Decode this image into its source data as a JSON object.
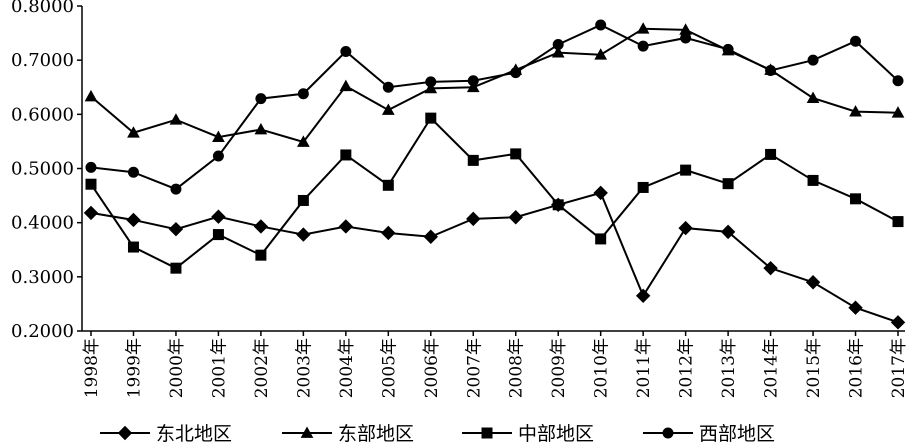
{
  "chart_data": {
    "type": "line",
    "categories": [
      "1998年",
      "1999年",
      "2000年",
      "2001年",
      "2002年",
      "2003年",
      "2004年",
      "2005年",
      "2006年",
      "2007年",
      "2008年",
      "2009年",
      "2010年",
      "2011年",
      "2012年",
      "2013年",
      "2014年",
      "2015年",
      "2016年",
      "2017年"
    ],
    "y_ticks": [
      "0.2000",
      "0.3000",
      "0.4000",
      "0.5000",
      "0.6000",
      "0.7000",
      "0.8000"
    ],
    "ylim": [
      0.2,
      0.8
    ],
    "grid": false,
    "legend_position": "bottom",
    "series": [
      {
        "name": "东北地区",
        "marker": "diamond",
        "values": [
          0.418,
          0.405,
          0.388,
          0.411,
          0.393,
          0.378,
          0.393,
          0.381,
          0.374,
          0.407,
          0.41,
          0.433,
          0.455,
          0.265,
          0.39,
          0.383,
          0.316,
          0.29,
          0.243,
          0.216
        ]
      },
      {
        "name": "东部地区",
        "marker": "triangle",
        "values": [
          0.633,
          0.566,
          0.59,
          0.558,
          0.572,
          0.549,
          0.652,
          0.608,
          0.648,
          0.65,
          0.682,
          0.714,
          0.71,
          0.758,
          0.756,
          0.718,
          0.682,
          0.63,
          0.605,
          0.603
        ]
      },
      {
        "name": "中部地区",
        "marker": "square",
        "values": [
          0.471,
          0.355,
          0.316,
          0.378,
          0.34,
          0.441,
          0.525,
          0.469,
          0.593,
          0.515,
          0.527,
          0.433,
          0.37,
          0.465,
          0.497,
          0.472,
          0.526,
          0.478,
          0.444,
          0.402
        ]
      },
      {
        "name": "西部地区",
        "marker": "circle",
        "values": [
          0.502,
          0.493,
          0.462,
          0.523,
          0.629,
          0.638,
          0.716,
          0.65,
          0.66,
          0.662,
          0.677,
          0.729,
          0.765,
          0.726,
          0.741,
          0.72,
          0.681,
          0.7,
          0.735,
          0.662
        ]
      }
    ]
  }
}
